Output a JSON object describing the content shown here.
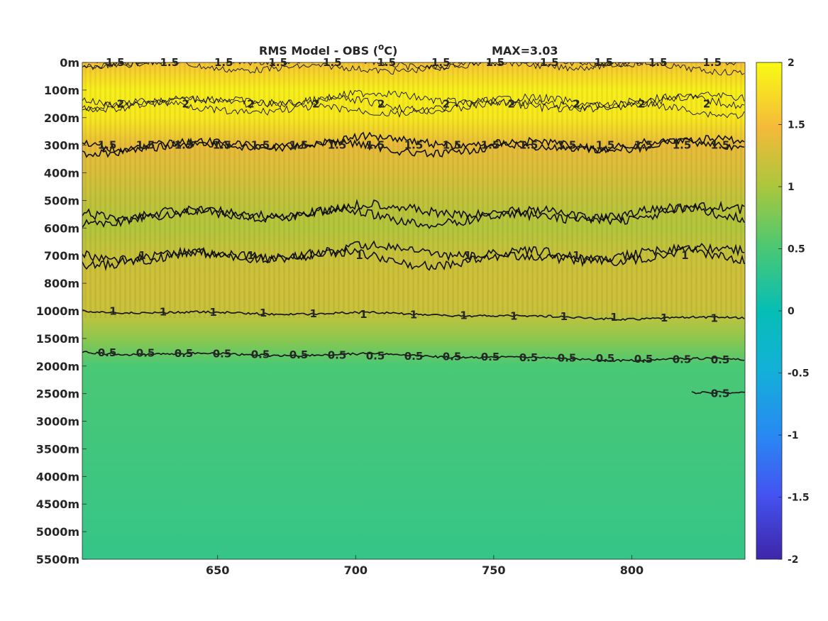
{
  "chart_data": {
    "type": "heatmap",
    "title": "RMS Model - OBS (",
    "title_unit_superscript": "o",
    "title_unit_letter": "C",
    "title_close": ")",
    "max_label": "MAX=3.03",
    "x": {
      "ticks": [
        650,
        700,
        750,
        800
      ],
      "tick_labels": [
        "650",
        "700",
        "750",
        "800"
      ],
      "range": [
        601,
        841
      ]
    },
    "y": {
      "tick_labels": [
        "0m",
        "100m",
        "200m",
        "300m",
        "400m",
        "500m",
        "600m",
        "700m",
        "800m",
        "1000m",
        "1500m",
        "2000m",
        "2500m",
        "3000m",
        "3500m",
        "4000m",
        "4500m",
        "5000m",
        "5500m"
      ],
      "reversed": true
    },
    "colorbar": {
      "colormap": "parula",
      "range": [
        -2,
        2
      ],
      "tick_values": [
        2,
        1.5,
        1,
        0.5,
        0,
        -0.5,
        -1,
        -1.5,
        -2
      ],
      "tick_labels": [
        "2",
        "1.5",
        "1",
        "0.5",
        "0",
        "-0.5",
        "-1",
        "-1.5",
        "-2"
      ]
    },
    "field_profile": [
      {
        "level": "0m",
        "value": 1.55
      },
      {
        "level": "100m",
        "value": 1.9
      },
      {
        "level": "200m",
        "value": 1.85
      },
      {
        "level": "300m",
        "value": 1.4
      },
      {
        "level": "400m",
        "value": 1.3
      },
      {
        "level": "500m",
        "value": 1.15
      },
      {
        "level": "600m",
        "value": 1.05
      },
      {
        "level": "700m",
        "value": 1.2
      },
      {
        "level": "800m",
        "value": 1.25
      },
      {
        "level": "1000m",
        "value": 1.2
      },
      {
        "level": "1500m",
        "value": 0.85
      },
      {
        "level": "2000m",
        "value": 0.5
      },
      {
        "level": "2500m",
        "value": 0.48
      },
      {
        "level": "5500m",
        "value": 0.35
      }
    ],
    "contours": [
      {
        "level": 1.5,
        "depth_level": "0m",
        "labels": [
          "1.5",
          "1.5",
          "1.5",
          "1.5",
          "1.5",
          "1.5",
          "1.5",
          "1.5",
          "1.5",
          "1.5",
          "1.5",
          "1.5"
        ]
      },
      {
        "level": 2,
        "depth_level": "150m",
        "labels": [
          "2",
          "2",
          "2",
          "2",
          "2",
          "2",
          "2",
          "2",
          "2",
          "2"
        ]
      },
      {
        "level": 1.5,
        "depth_level": "300m",
        "labels": [
          "1.5",
          "1.5",
          "1.5",
          "1.5",
          "1.5",
          "1.5",
          "1.5",
          "1.5",
          "1.5",
          "1.5",
          "1.5",
          "1.5",
          "1.5",
          "1.5",
          "1.5",
          "1.5",
          "1.5"
        ]
      },
      {
        "level": 1,
        "depth_level": "550m",
        "labels": []
      },
      {
        "level": 1,
        "depth_level": "700m",
        "labels": [
          "1",
          "1",
          "1",
          "1",
          "1",
          "1"
        ]
      },
      {
        "level": 1,
        "depth_level": "1000m",
        "labels": [
          "1",
          "1",
          "1",
          "1",
          "1",
          "1",
          "1",
          "1",
          "1",
          "1",
          "1",
          "1",
          "1"
        ]
      },
      {
        "level": 0.5,
        "depth_level": "1750m",
        "labels": [
          "0.5",
          "0.5",
          "0.5",
          "0.5",
          "0.5",
          "0.5",
          "0.5",
          "0.5",
          "0.5",
          "0.5",
          "0.5",
          "0.5",
          "0.5",
          "0.5",
          "0.5",
          "0.5",
          "0.5"
        ]
      },
      {
        "level": 0.5,
        "depth_level": "2500m",
        "labels": [
          "0.5"
        ]
      }
    ]
  }
}
